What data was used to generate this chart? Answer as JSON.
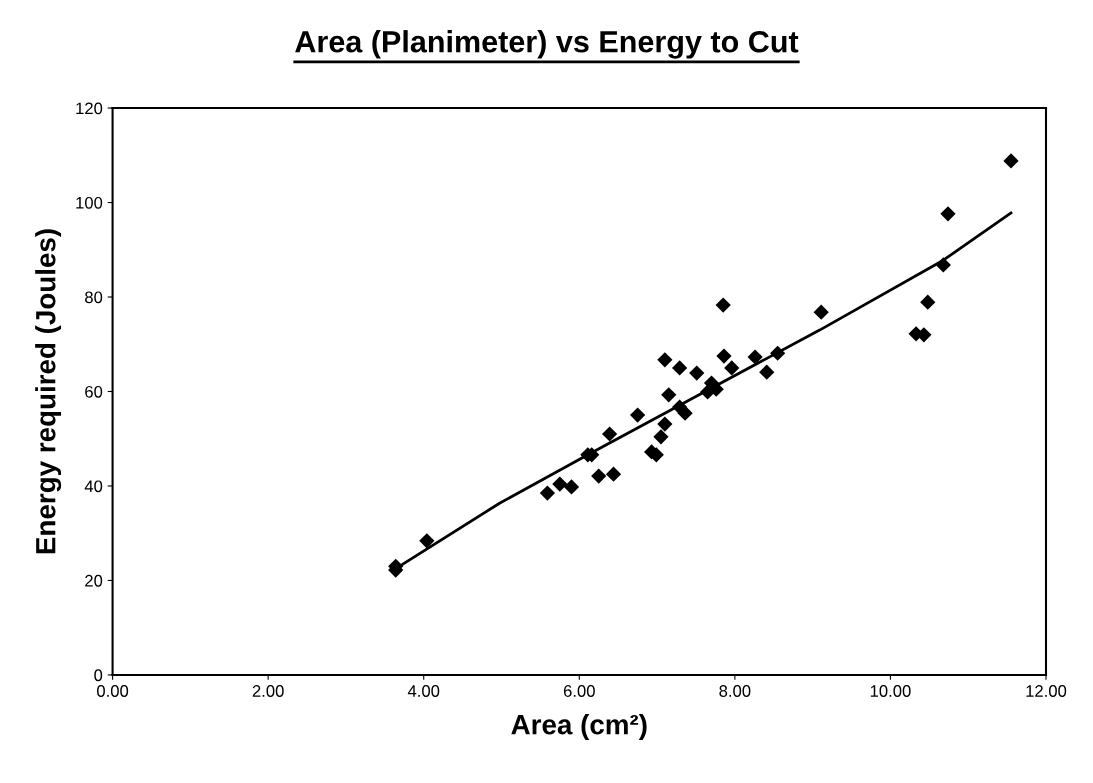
{
  "chart_data": {
    "type": "scatter",
    "title": "Area (Planimeter) vs Energy to Cut",
    "xlabel": "Area (cm²)",
    "ylabel": "Energy required (Joules)",
    "xlim": [
      0,
      12
    ],
    "ylim": [
      0,
      120
    ],
    "xticks": [
      {
        "value": 0,
        "label": "0.00"
      },
      {
        "value": 2,
        "label": "2.00"
      },
      {
        "value": 4,
        "label": "4.00"
      },
      {
        "value": 6,
        "label": "6.00"
      },
      {
        "value": 8,
        "label": "8.00"
      },
      {
        "value": 10,
        "label": "10.00"
      },
      {
        "value": 12,
        "label": "12.00"
      }
    ],
    "yticks": [
      0,
      20,
      40,
      60,
      80,
      100,
      120
    ],
    "grid": false,
    "series": [
      {
        "color": "#000000",
        "marker": "diamond",
        "x": [
          3.64,
          3.64,
          4.04,
          5.59,
          5.75,
          5.9,
          6.25,
          6.44,
          6.11,
          6.16,
          6.39,
          6.93,
          6.99,
          7.05,
          7.1,
          6.75,
          7.15,
          7.29,
          7.36,
          7.1,
          7.29,
          7.51,
          7.65,
          7.7,
          7.76,
          7.86,
          7.96,
          7.85,
          8.26,
          8.41,
          8.55,
          9.11,
          10.33,
          10.43,
          10.48,
          10.68,
          10.74,
          11.55
        ],
        "values": [
          23.0,
          22.2,
          28.4,
          38.5,
          40.4,
          39.8,
          42.1,
          42.5,
          46.6,
          46.6,
          51.0,
          47.2,
          46.6,
          50.4,
          53.1,
          55.0,
          59.3,
          56.7,
          55.4,
          66.7,
          65.0,
          63.9,
          59.9,
          61.8,
          60.5,
          67.5,
          65.0,
          78.3,
          67.3,
          64.1,
          68.1,
          76.8,
          72.2,
          72.0,
          78.9,
          86.8,
          97.6,
          108.8
        ]
      },
      {
        "type": "line",
        "color": "#000000",
        "line_style": "solid",
        "marker": "none",
        "x": [
          3.64,
          4.98,
          6.11,
          7.29,
          9.09,
          10.68,
          11.55
        ],
        "values": [
          22.5,
          36.4,
          46.6,
          57.1,
          73.0,
          87.8,
          97.8
        ]
      }
    ]
  }
}
